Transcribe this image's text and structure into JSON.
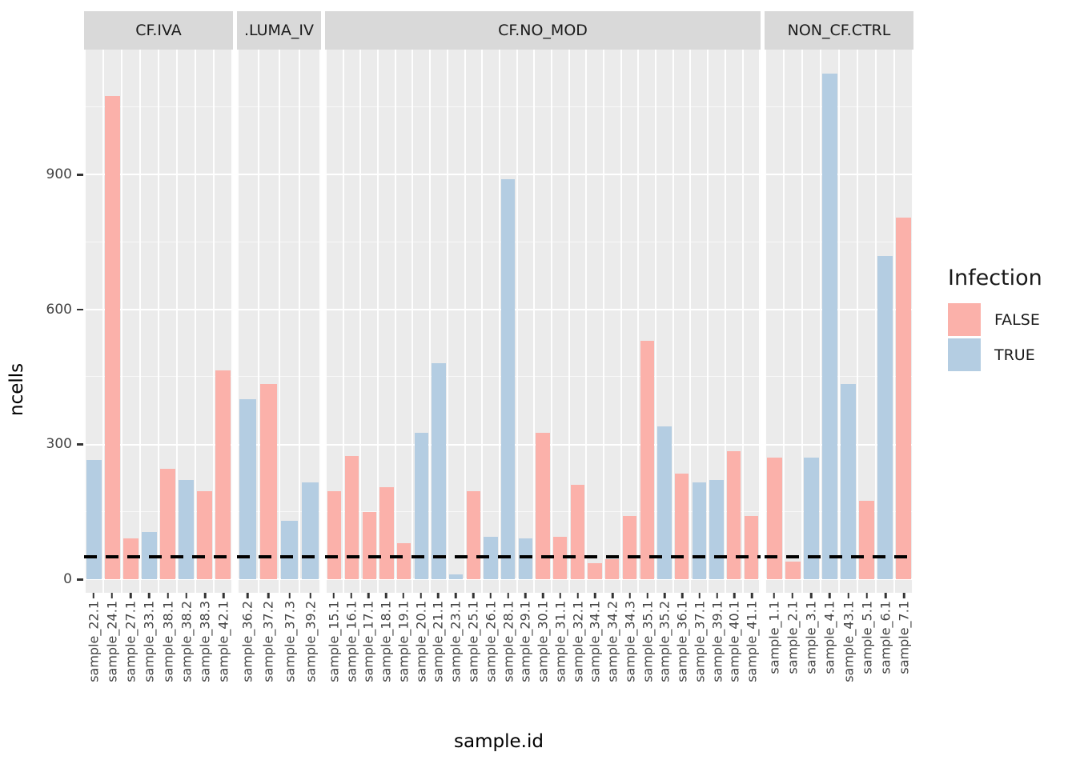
{
  "chart_data": {
    "type": "bar",
    "title": "",
    "xlabel": "sample.id",
    "ylabel": "ncells",
    "yticks": [
      0,
      300,
      600,
      900
    ],
    "yminor": [
      150,
      450,
      750,
      1050
    ],
    "ylim": [
      0,
      1178
    ],
    "grid": "on",
    "hline": {
      "value": 50,
      "style": "dashed",
      "color": "#000000"
    },
    "legend": {
      "title": "Infection",
      "position": "right",
      "entries": [
        {
          "label": "FALSE",
          "color": "#FBB1AA"
        },
        {
          "label": "TRUE",
          "color": "#B4CDE2"
        }
      ]
    },
    "facets": [
      {
        "label": "CF.IVA",
        "bars": [
          {
            "id": "sample_22.1",
            "infection": "TRUE",
            "value": 265
          },
          {
            "id": "sample_24.1",
            "infection": "FALSE",
            "value": 1075
          },
          {
            "id": "sample_27.1",
            "infection": "FALSE",
            "value": 90
          },
          {
            "id": "sample_33.1",
            "infection": "TRUE",
            "value": 105
          },
          {
            "id": "sample_38.1",
            "infection": "FALSE",
            "value": 245
          },
          {
            "id": "sample_38.2",
            "infection": "TRUE",
            "value": 220
          },
          {
            "id": "sample_38.3",
            "infection": "FALSE",
            "value": 195
          },
          {
            "id": "sample_42.1",
            "infection": "FALSE",
            "value": 465
          }
        ]
      },
      {
        "label": ".LUMA_IV",
        "bars": [
          {
            "id": "sample_36.2",
            "infection": "TRUE",
            "value": 400
          },
          {
            "id": "sample_37.2",
            "infection": "FALSE",
            "value": 435
          },
          {
            "id": "sample_37.3",
            "infection": "TRUE",
            "value": 130
          },
          {
            "id": "sample_39.2",
            "infection": "TRUE",
            "value": 215
          }
        ]
      },
      {
        "label": "CF.NO_MOD",
        "bars": [
          {
            "id": "sample_15.1",
            "infection": "FALSE",
            "value": 195
          },
          {
            "id": "sample_16.1",
            "infection": "FALSE",
            "value": 275
          },
          {
            "id": "sample_17.1",
            "infection": "FALSE",
            "value": 150
          },
          {
            "id": "sample_18.1",
            "infection": "FALSE",
            "value": 205
          },
          {
            "id": "sample_19.1",
            "infection": "FALSE",
            "value": 80
          },
          {
            "id": "sample_20.1",
            "infection": "TRUE",
            "value": 325
          },
          {
            "id": "sample_21.1",
            "infection": "TRUE",
            "value": 480
          },
          {
            "id": "sample_23.1",
            "infection": "TRUE",
            "value": 10
          },
          {
            "id": "sample_25.1",
            "infection": "FALSE",
            "value": 195
          },
          {
            "id": "sample_26.1",
            "infection": "TRUE",
            "value": 95
          },
          {
            "id": "sample_28.1",
            "infection": "TRUE",
            "value": 890
          },
          {
            "id": "sample_29.1",
            "infection": "TRUE",
            "value": 90
          },
          {
            "id": "sample_30.1",
            "infection": "FALSE",
            "value": 325
          },
          {
            "id": "sample_31.1",
            "infection": "FALSE",
            "value": 95
          },
          {
            "id": "sample_32.1",
            "infection": "FALSE",
            "value": 210
          },
          {
            "id": "sample_34.1",
            "infection": "FALSE",
            "value": 35
          },
          {
            "id": "sample_34.2",
            "infection": "FALSE",
            "value": 45
          },
          {
            "id": "sample_34.3",
            "infection": "FALSE",
            "value": 140
          },
          {
            "id": "sample_35.1",
            "infection": "FALSE",
            "value": 530
          },
          {
            "id": "sample_35.2",
            "infection": "TRUE",
            "value": 340
          },
          {
            "id": "sample_36.1",
            "infection": "FALSE",
            "value": 235
          },
          {
            "id": "sample_37.1",
            "infection": "TRUE",
            "value": 215
          },
          {
            "id": "sample_39.1",
            "infection": "TRUE",
            "value": 220
          },
          {
            "id": "sample_40.1",
            "infection": "FALSE",
            "value": 285
          },
          {
            "id": "sample_41.1",
            "infection": "FALSE",
            "value": 140
          }
        ]
      },
      {
        "label": "NON_CF.CTRL",
        "bars": [
          {
            "id": "sample_1.1",
            "infection": "FALSE",
            "value": 270
          },
          {
            "id": "sample_2.1",
            "infection": "FALSE",
            "value": 40
          },
          {
            "id": "sample_3.1",
            "infection": "TRUE",
            "value": 270
          },
          {
            "id": "sample_4.1",
            "infection": "TRUE",
            "value": 1125
          },
          {
            "id": "sample_43.1",
            "infection": "TRUE",
            "value": 435
          },
          {
            "id": "sample_5.1",
            "infection": "FALSE",
            "value": 175
          },
          {
            "id": "sample_6.1",
            "infection": "TRUE",
            "value": 720
          },
          {
            "id": "sample_7.1",
            "infection": "FALSE",
            "value": 805
          }
        ]
      }
    ],
    "colors": {
      "panel_bg": "#EBEBEB",
      "strip_bg": "#D9D9D9",
      "gridline": "#FFFFFF",
      "fill_false": "#FBB1AA",
      "fill_true": "#B4CDE2",
      "axis_text": "#444444",
      "hline": "#000000"
    }
  }
}
